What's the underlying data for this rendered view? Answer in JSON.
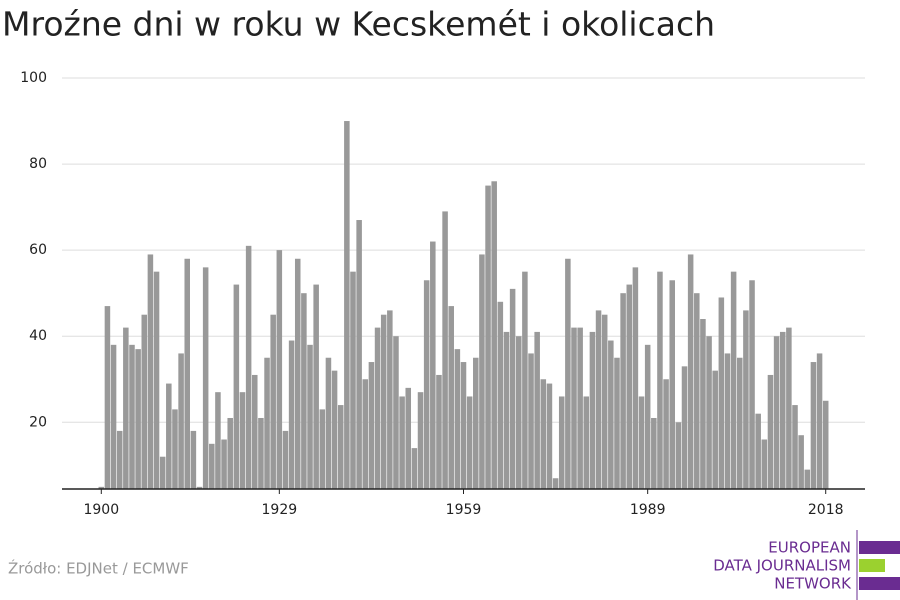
{
  "chart_data": {
    "type": "bar",
    "title": "Mroźne dni w roku w Kecskemét i okolicach",
    "x": [
      1900,
      1901,
      1902,
      1903,
      1904,
      1905,
      1906,
      1907,
      1908,
      1909,
      1910,
      1911,
      1912,
      1913,
      1914,
      1915,
      1916,
      1917,
      1918,
      1919,
      1920,
      1921,
      1922,
      1923,
      1924,
      1925,
      1926,
      1927,
      1928,
      1929,
      1930,
      1931,
      1932,
      1933,
      1934,
      1935,
      1936,
      1937,
      1938,
      1939,
      1940,
      1941,
      1942,
      1943,
      1944,
      1945,
      1946,
      1947,
      1948,
      1949,
      1950,
      1951,
      1952,
      1953,
      1954,
      1955,
      1956,
      1957,
      1958,
      1959,
      1960,
      1961,
      1962,
      1963,
      1964,
      1965,
      1966,
      1967,
      1968,
      1969,
      1970,
      1971,
      1972,
      1973,
      1974,
      1975,
      1976,
      1977,
      1978,
      1979,
      1980,
      1981,
      1982,
      1983,
      1984,
      1985,
      1986,
      1987,
      1988,
      1989,
      1990,
      1991,
      1992,
      1993,
      1994,
      1995,
      1996,
      1997,
      1998,
      1999,
      2000,
      2001,
      2002,
      2003,
      2004,
      2005,
      2006,
      2007,
      2008,
      2009,
      2010,
      2011,
      2012,
      2013,
      2014,
      2015,
      2016,
      2017,
      2018
    ],
    "values": [
      5,
      47,
      38,
      18,
      42,
      38,
      37,
      45,
      59,
      55,
      12,
      29,
      23,
      36,
      58,
      18,
      5,
      56,
      15,
      27,
      16,
      21,
      52,
      27,
      61,
      31,
      21,
      35,
      45,
      60,
      18,
      39,
      58,
      50,
      38,
      52,
      23,
      35,
      32,
      24,
      90,
      55,
      67,
      30,
      34,
      42,
      45,
      46,
      40,
      26,
      28,
      14,
      27,
      53,
      62,
      31,
      69,
      47,
      37,
      34,
      26,
      35,
      59,
      75,
      76,
      48,
      41,
      51,
      40,
      55,
      36,
      41,
      30,
      29,
      7,
      26,
      58,
      42,
      42,
      26,
      41,
      46,
      45,
      39,
      35,
      50,
      52,
      56,
      26,
      38,
      21,
      55,
      30,
      53,
      20,
      33,
      59,
      50,
      44,
      40,
      32,
      49,
      36,
      55,
      35,
      46,
      53,
      22,
      16,
      31,
      40,
      41,
      42,
      24,
      17,
      9,
      34,
      36,
      25
    ],
    "color": "#999999",
    "xlim": [
      1893.6,
      2024.4
    ],
    "xticks": [
      1900,
      1929,
      1959,
      1989,
      2018
    ],
    "ylim": [
      4.5,
      100
    ],
    "yticks": [
      20,
      40,
      60,
      80,
      100
    ],
    "grid": true,
    "source": "Źródło: EDJNet / ECMWF"
  },
  "logo": {
    "lines": [
      "EUROPEAN",
      "DATA JOURNALISM",
      "NETWORK"
    ],
    "color": "#6a2c91",
    "accent": "#9bd12f"
  }
}
